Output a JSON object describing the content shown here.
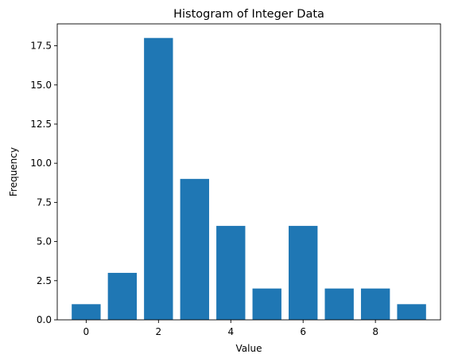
{
  "chart_data": {
    "type": "bar",
    "title": "Histogram of Integer Data",
    "xlabel": "Value",
    "ylabel": "Frequency",
    "x": [
      0,
      1,
      2,
      3,
      4,
      5,
      6,
      7,
      8,
      9
    ],
    "values": [
      1,
      3,
      18,
      9,
      6,
      2,
      6,
      2,
      2,
      1
    ],
    "xlim": [
      -0.8,
      9.8
    ],
    "ylim": [
      0,
      18.9
    ],
    "xticks": [
      0,
      2,
      4,
      6,
      8
    ],
    "xtick_labels": [
      "0",
      "2",
      "4",
      "6",
      "8"
    ],
    "yticks": [
      0,
      2.5,
      5,
      7.5,
      10,
      12.5,
      15,
      17.5
    ],
    "ytick_labels": [
      "0.0",
      "2.5",
      "5.0",
      "7.5",
      "10.0",
      "12.5",
      "15.0",
      "17.5"
    ],
    "bar_width": 0.8,
    "bar_color": "#1f77b4",
    "grid": false,
    "legend": "none"
  }
}
